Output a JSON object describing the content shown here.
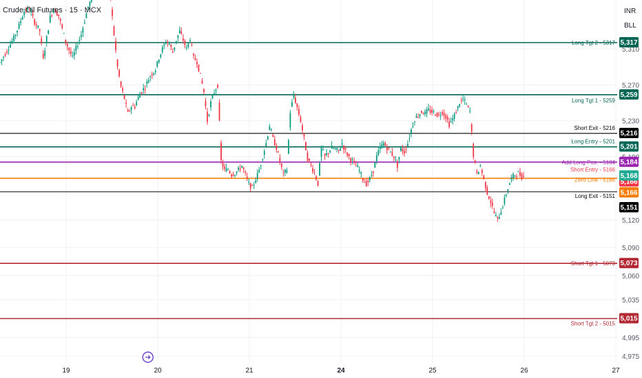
{
  "header": {
    "symbol_title": "Crude Oil Futures · 15 · MCX",
    "currency": "INR",
    "unit": "BLL"
  },
  "colors": {
    "up": "#089981",
    "down": "#f23645",
    "grid": "#eef0f3",
    "axis_text": "#555a66",
    "long_target": "#056656",
    "long_entry": "#056656",
    "short_target": "#b22833",
    "exit": "#000000",
    "add_long": "#9c27b0",
    "short_entry": "#22ab94",
    "zero_line": "#f57c00",
    "short_entry_badge": "#f23645"
  },
  "chart_data": {
    "type": "candlestick",
    "title": "Crude Oil Futures · 15 · MCX",
    "y_axis": {
      "ylim": [
        4965,
        5380
      ],
      "ticks": [
        5310,
        5270,
        5230,
        5190,
        5120,
        5090,
        5060,
        5035,
        4995,
        4975
      ]
    },
    "x_axis": {
      "ticks": [
        {
          "label": "19",
          "bold": false
        },
        {
          "label": "20",
          "bold": false
        },
        {
          "label": "21",
          "bold": false
        },
        {
          "label": "24",
          "bold": true
        },
        {
          "label": "25",
          "bold": false
        },
        {
          "label": "26",
          "bold": false
        },
        {
          "label": "27",
          "bold": false
        }
      ]
    },
    "levels": [
      {
        "label": "Long Tgt 2 - 5317",
        "value": 5317,
        "badge": "5,317",
        "color_key": "long_target",
        "badge_color_key": "long_target",
        "thick": true
      },
      {
        "label": "Long Tgt 1 - 5259",
        "value": 5259,
        "badge": "5,259",
        "color_key": "long_target",
        "badge_color_key": "long_target",
        "thick": true
      },
      {
        "label": "Short Exit - 5216",
        "value": 5216,
        "badge": "5,216",
        "color_key": "exit",
        "badge_color_key": "exit",
        "thick": false
      },
      {
        "label": "Long Entry - 5201",
        "value": 5201,
        "badge": "5,201",
        "color_key": "long_entry",
        "badge_color_key": "long_entry",
        "thick": true
      },
      {
        "label": "Add Long Pos. - 5184",
        "value": 5184,
        "badge": "5,184",
        "color_key": "add_long",
        "badge_color_key": "add_long",
        "thick": true
      },
      {
        "label": "Short Entry - 5166",
        "value": 5166,
        "badge": "5,166",
        "color_key": "short_entry_badge",
        "badge_color_key": "short_entry_badge",
        "thick": false
      },
      {
        "label": "Zero Line - 5166",
        "value": 5166,
        "badge": "5,166",
        "color_key": "zero_line",
        "badge_color_key": "zero_line",
        "thick": true
      },
      {
        "label": "Long Exit - 5151",
        "value": 5151,
        "badge": "5,151",
        "color_key": "exit",
        "badge_color_key": "exit",
        "thick": false
      },
      {
        "label": "Short Tgt 1 - 5073",
        "value": 5073,
        "badge": "5,073",
        "color_key": "short_target",
        "badge_color_key": "short_target",
        "thick": true
      },
      {
        "label": "Short Tgt 2 - 5015",
        "value": 5015,
        "badge": "5,015",
        "color_key": "short_target",
        "badge_color_key": "short_target",
        "thick": true
      }
    ],
    "last_price": {
      "value": 5168,
      "badge": "5,168"
    },
    "path": [
      [
        0,
        5295
      ],
      [
        4,
        5308
      ],
      [
        8,
        5322
      ],
      [
        11,
        5336
      ],
      [
        14,
        5352
      ],
      [
        17,
        5355
      ],
      [
        20,
        5340
      ],
      [
        23,
        5330
      ],
      [
        25,
        5298
      ],
      [
        27,
        5322
      ],
      [
        29,
        5345
      ],
      [
        31,
        5355
      ],
      [
        34,
        5347
      ],
      [
        38,
        5318
      ],
      [
        42,
        5300
      ],
      [
        47,
        5326
      ],
      [
        51,
        5357
      ],
      [
        54,
        5370
      ],
      [
        56,
        5390
      ],
      [
        58,
        5395
      ],
      [
        60,
        5382
      ],
      [
        62,
        5380
      ],
      [
        64,
        5365
      ],
      [
        66,
        5326
      ],
      [
        68,
        5290
      ],
      [
        70,
        5268
      ],
      [
        72,
        5255
      ],
      [
        74,
        5238
      ],
      [
        76,
        5246
      ],
      [
        78,
        5246
      ],
      [
        81,
        5260
      ],
      [
        84,
        5268
      ],
      [
        87,
        5280
      ],
      [
        90,
        5287
      ],
      [
        92,
        5300
      ],
      [
        94,
        5310
      ],
      [
        96,
        5318
      ],
      [
        98,
        5316
      ],
      [
        100,
        5306
      ],
      [
        102,
        5320
      ],
      [
        104,
        5330
      ],
      [
        106,
        5320
      ],
      [
        108,
        5310
      ],
      [
        110,
        5322
      ],
      [
        112,
        5300
      ],
      [
        114,
        5296
      ],
      [
        116,
        5280
      ],
      [
        118,
        5262
      ],
      [
        120,
        5230
      ],
      [
        122,
        5250
      ],
      [
        124,
        5262
      ],
      [
        126,
        5270
      ],
      [
        128,
        5185
      ],
      [
        130,
        5175
      ],
      [
        132,
        5176
      ],
      [
        134,
        5170
      ],
      [
        136,
        5172
      ],
      [
        138,
        5175
      ],
      [
        140,
        5180
      ],
      [
        142,
        5170
      ],
      [
        144,
        5160
      ],
      [
        146,
        5155
      ],
      [
        148,
        5165
      ],
      [
        150,
        5175
      ],
      [
        152,
        5190
      ],
      [
        154,
        5205
      ],
      [
        156,
        5225
      ],
      [
        158,
        5210
      ],
      [
        160,
        5200
      ],
      [
        162,
        5185
      ],
      [
        164,
        5170
      ],
      [
        166,
        5176
      ],
      [
        168,
        5240
      ],
      [
        170,
        5259
      ],
      [
        172,
        5245
      ],
      [
        174,
        5230
      ],
      [
        176,
        5210
      ],
      [
        178,
        5188
      ],
      [
        180,
        5180
      ],
      [
        182,
        5172
      ],
      [
        184,
        5160
      ],
      [
        186,
        5200
      ],
      [
        188,
        5190
      ],
      [
        190,
        5195
      ],
      [
        192,
        5200
      ],
      [
        194,
        5198
      ],
      [
        196,
        5196
      ],
      [
        198,
        5205
      ],
      [
        200,
        5196
      ],
      [
        202,
        5190
      ],
      [
        204,
        5185
      ],
      [
        206,
        5180
      ],
      [
        208,
        5175
      ],
      [
        210,
        5165
      ],
      [
        212,
        5160
      ],
      [
        214,
        5165
      ],
      [
        216,
        5175
      ],
      [
        218,
        5190
      ],
      [
        220,
        5200
      ],
      [
        222,
        5205
      ],
      [
        224,
        5200
      ],
      [
        226,
        5195
      ],
      [
        228,
        5190
      ],
      [
        230,
        5180
      ],
      [
        232,
        5200
      ],
      [
        234,
        5195
      ],
      [
        236,
        5205
      ],
      [
        238,
        5220
      ],
      [
        240,
        5232
      ],
      [
        242,
        5236
      ],
      [
        244,
        5240
      ],
      [
        246,
        5238
      ],
      [
        248,
        5242
      ],
      [
        250,
        5240
      ],
      [
        252,
        5238
      ],
      [
        254,
        5236
      ],
      [
        256,
        5240
      ],
      [
        258,
        5235
      ],
      [
        260,
        5226
      ],
      [
        262,
        5232
      ],
      [
        264,
        5240
      ],
      [
        266,
        5250
      ],
      [
        268,
        5254
      ],
      [
        270,
        5248
      ],
      [
        272,
        5240
      ],
      [
        274,
        5192
      ],
      [
        276,
        5170
      ],
      [
        278,
        5180
      ],
      [
        280,
        5165
      ],
      [
        282,
        5150
      ],
      [
        284,
        5140
      ],
      [
        286,
        5128
      ],
      [
        288,
        5120
      ],
      [
        290,
        5130
      ],
      [
        292,
        5142
      ],
      [
        294,
        5155
      ],
      [
        296,
        5166
      ],
      [
        298,
        5170
      ],
      [
        300,
        5172
      ],
      [
        302,
        5168
      ],
      [
        303,
        5168
      ]
    ],
    "markers": [
      {
        "name": "replay-marker",
        "x_step": 85.6,
        "value": 4990
      }
    ]
  }
}
